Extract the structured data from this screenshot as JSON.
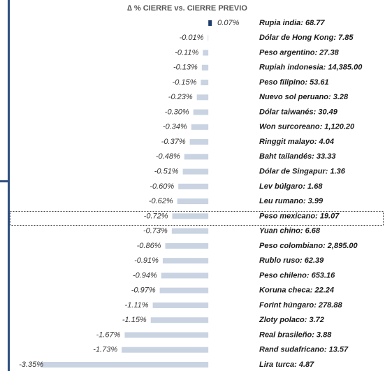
{
  "chart_data": {
    "type": "barh",
    "title": "∆ % CIERRE vs. CIERRE PREVIO",
    "categories": [
      "Rupia india: 68.77",
      "Dólar de Hong Kong: 7.85",
      "Peso argentino: 27.38",
      "Rupiah indonesia: 14,385.00",
      "Peso filipino: 53.61",
      "Nuevo sol peruano: 3.28",
      "Dólar taiwanés: 30.49",
      "Won surcoreano: 1,120.20",
      "Ringgit malayo: 4.04",
      "Baht tailandés: 33.33",
      "Dólar de Singapur: 1.36",
      "Lev búlgaro: 1.68",
      "Leu rumano: 3.99",
      "Peso mexicano: 19.07",
      "Yuan chino: 6.68",
      "Peso colombiano: 2,895.00",
      "Rublo ruso: 62.39",
      "Peso chileno: 653.16",
      "Koruna checa: 22.24",
      "Forint húngaro: 278.88",
      "Zloty polaco: 3.72",
      "Real brasileño: 3.88",
      "Rand sudafricano: 13.57",
      "Lira turca: 4.87"
    ],
    "values": [
      0.07,
      -0.01,
      -0.11,
      -0.13,
      -0.15,
      -0.23,
      -0.3,
      -0.34,
      -0.37,
      -0.48,
      -0.51,
      -0.6,
      -0.62,
      -0.72,
      -0.73,
      -0.86,
      -0.91,
      -0.94,
      -0.97,
      -1.11,
      -1.15,
      -1.67,
      -1.73,
      -3.35
    ],
    "value_labels": [
      "0.07%",
      "-0.01%",
      "-0.11%",
      "-0.13%",
      "-0.15%",
      "-0.23%",
      "-0.30%",
      "-0.34%",
      "-0.37%",
      "-0.48%",
      "-0.51%",
      "-0.60%",
      "-0.62%",
      "-0.72%",
      "-0.73%",
      "-0.86%",
      "-0.91%",
      "-0.94%",
      "-0.97%",
      "-1.11%",
      "-1.15%",
      "-1.67%",
      "-1.73%",
      "-3.35%"
    ],
    "color": "#c9d3e2",
    "positive_color": "#1f3d6e",
    "xlim": [
      -3.95,
      0.5
    ]
  }
}
